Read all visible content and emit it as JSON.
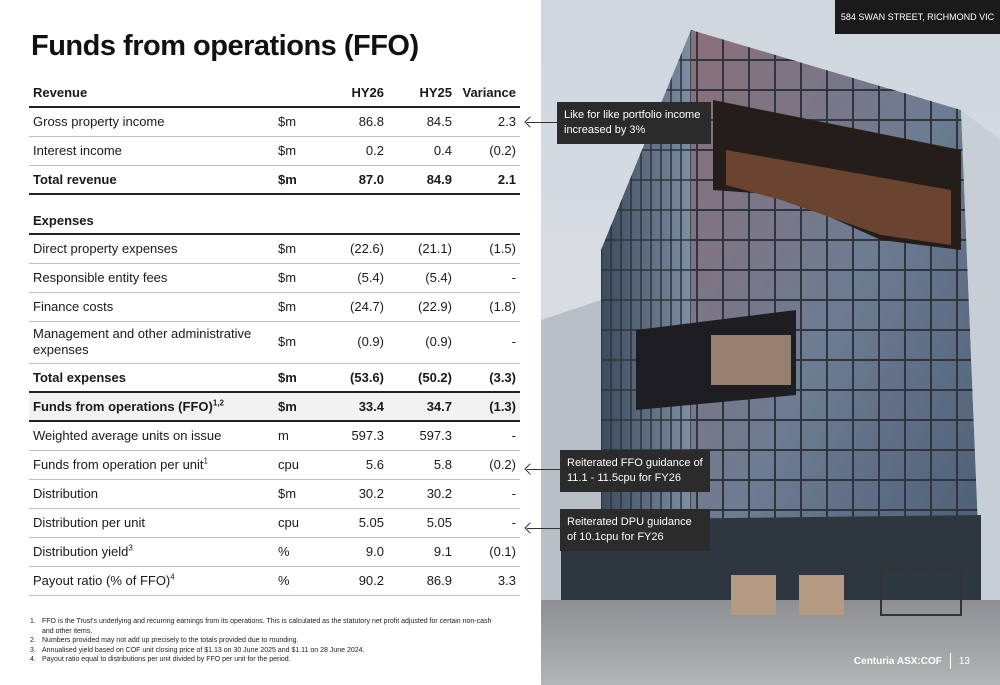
{
  "title": "Funds from operations (FFO)",
  "table": {
    "headers": [
      "Revenue",
      "",
      "HY26",
      "HY25",
      "Variance"
    ],
    "revenue_rows": [
      {
        "label": "Gross property income",
        "unit": "$m",
        "hy26": "86.8",
        "hy25": "84.5",
        "var": "2.3"
      },
      {
        "label": "Interest income",
        "unit": "$m",
        "hy26": "0.2",
        "hy25": "0.4",
        "var": "(0.2)"
      }
    ],
    "total_revenue": {
      "label": "Total revenue",
      "unit": "$m",
      "hy26": "87.0",
      "hy25": "84.9",
      "var": "2.1"
    },
    "expenses_heading": "Expenses",
    "expense_rows": [
      {
        "label": "Direct property expenses",
        "unit": "$m",
        "hy26": "(22.6)",
        "hy25": "(21.1)",
        "var": "(1.5)"
      },
      {
        "label": "Responsible entity fees",
        "unit": "$m",
        "hy26": "(5.4)",
        "hy25": "(5.4)",
        "var": "-"
      },
      {
        "label": "Finance costs",
        "unit": "$m",
        "hy26": "(24.7)",
        "hy25": "(22.9)",
        "var": "(1.8)"
      },
      {
        "label": "Management and other administrative expenses",
        "unit": "$m",
        "hy26": "(0.9)",
        "hy25": "(0.9)",
        "var": "-"
      }
    ],
    "total_expenses": {
      "label": "Total expenses",
      "unit": "$m",
      "hy26": "(53.6)",
      "hy25": "(50.2)",
      "var": "(3.3)"
    },
    "ffo": {
      "label": "Funds from operations (FFO)",
      "sup": "1,2",
      "unit": "$m",
      "hy26": "33.4",
      "hy25": "34.7",
      "var": "(1.3)"
    },
    "metric_rows": [
      {
        "label": "Weighted average units on issue",
        "sup": "",
        "unit": "m",
        "hy26": "597.3",
        "hy25": "597.3",
        "var": "-"
      },
      {
        "label": "Funds from operation per unit",
        "sup": "1",
        "unit": "cpu",
        "hy26": "5.6",
        "hy25": "5.8",
        "var": "(0.2)"
      },
      {
        "label": "Distribution",
        "sup": "",
        "unit": "$m",
        "hy26": "30.2",
        "hy25": "30.2",
        "var": "-"
      },
      {
        "label": "Distribution per unit",
        "sup": "",
        "unit": "cpu",
        "hy26": "5.05",
        "hy25": "5.05",
        "var": "-"
      },
      {
        "label": "Distribution yield",
        "sup": "3",
        "unit": "%",
        "hy26": "9.0",
        "hy25": "9.1",
        "var": "(0.1)"
      },
      {
        "label": "Payout ratio (% of FFO)",
        "sup": "4",
        "unit": "%",
        "hy26": "90.2",
        "hy25": "86.9",
        "var": "3.3"
      }
    ]
  },
  "footnotes": [
    {
      "n": "1.",
      "text": "FFO is the Trust's underlying and recurring earnings from its operations. This is calculated as the statutory net profit adjusted for certain non-cash and other items."
    },
    {
      "n": "2.",
      "text": "Numbers provided may not add up precisely to the totals provided due to rounding."
    },
    {
      "n": "3.",
      "text": "Annualised yield based on COF unit closing price of $1.13 on 30 June 2025 and $1.11 on 28 June 2024."
    },
    {
      "n": "4.",
      "text": "Payout ratio equal to distributions per unit divided by FFO per unit for the period."
    }
  ],
  "address": "584 SWAN STREET, RICHMOND VIC",
  "callouts": {
    "income": "Like for like portfolio income increased by 3%",
    "ffo_guidance": "Reiterated FFO guidance of 11.1 - 11.5cpu for FY26",
    "dpu_guidance": "Reiterated DPU guidance of 10.1cpu for FY26"
  },
  "footer": {
    "brand": "Centuria ASX:COF",
    "page": "13"
  }
}
